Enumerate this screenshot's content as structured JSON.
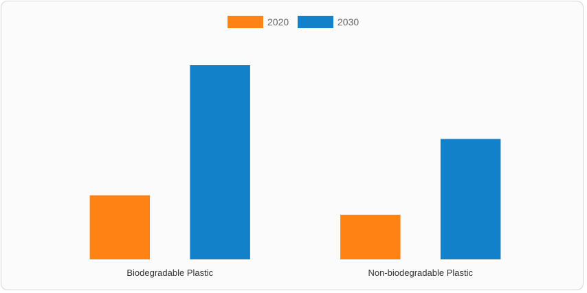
{
  "chart_data": {
    "type": "bar",
    "categories": [
      "Biodegradable Plastic",
      "Non-biodegradable Plastic"
    ],
    "series": [
      {
        "name": "2020",
        "values": [
          33,
          23
        ],
        "color": "#ff8214"
      },
      {
        "name": "2030",
        "values": [
          100,
          62
        ],
        "color": "#1281c9"
      }
    ],
    "title": "",
    "xlabel": "",
    "ylabel": "",
    "ylim": [
      0,
      100
    ],
    "grid": false,
    "y_axis_visible": false,
    "legend": {
      "position": "top-center"
    }
  }
}
